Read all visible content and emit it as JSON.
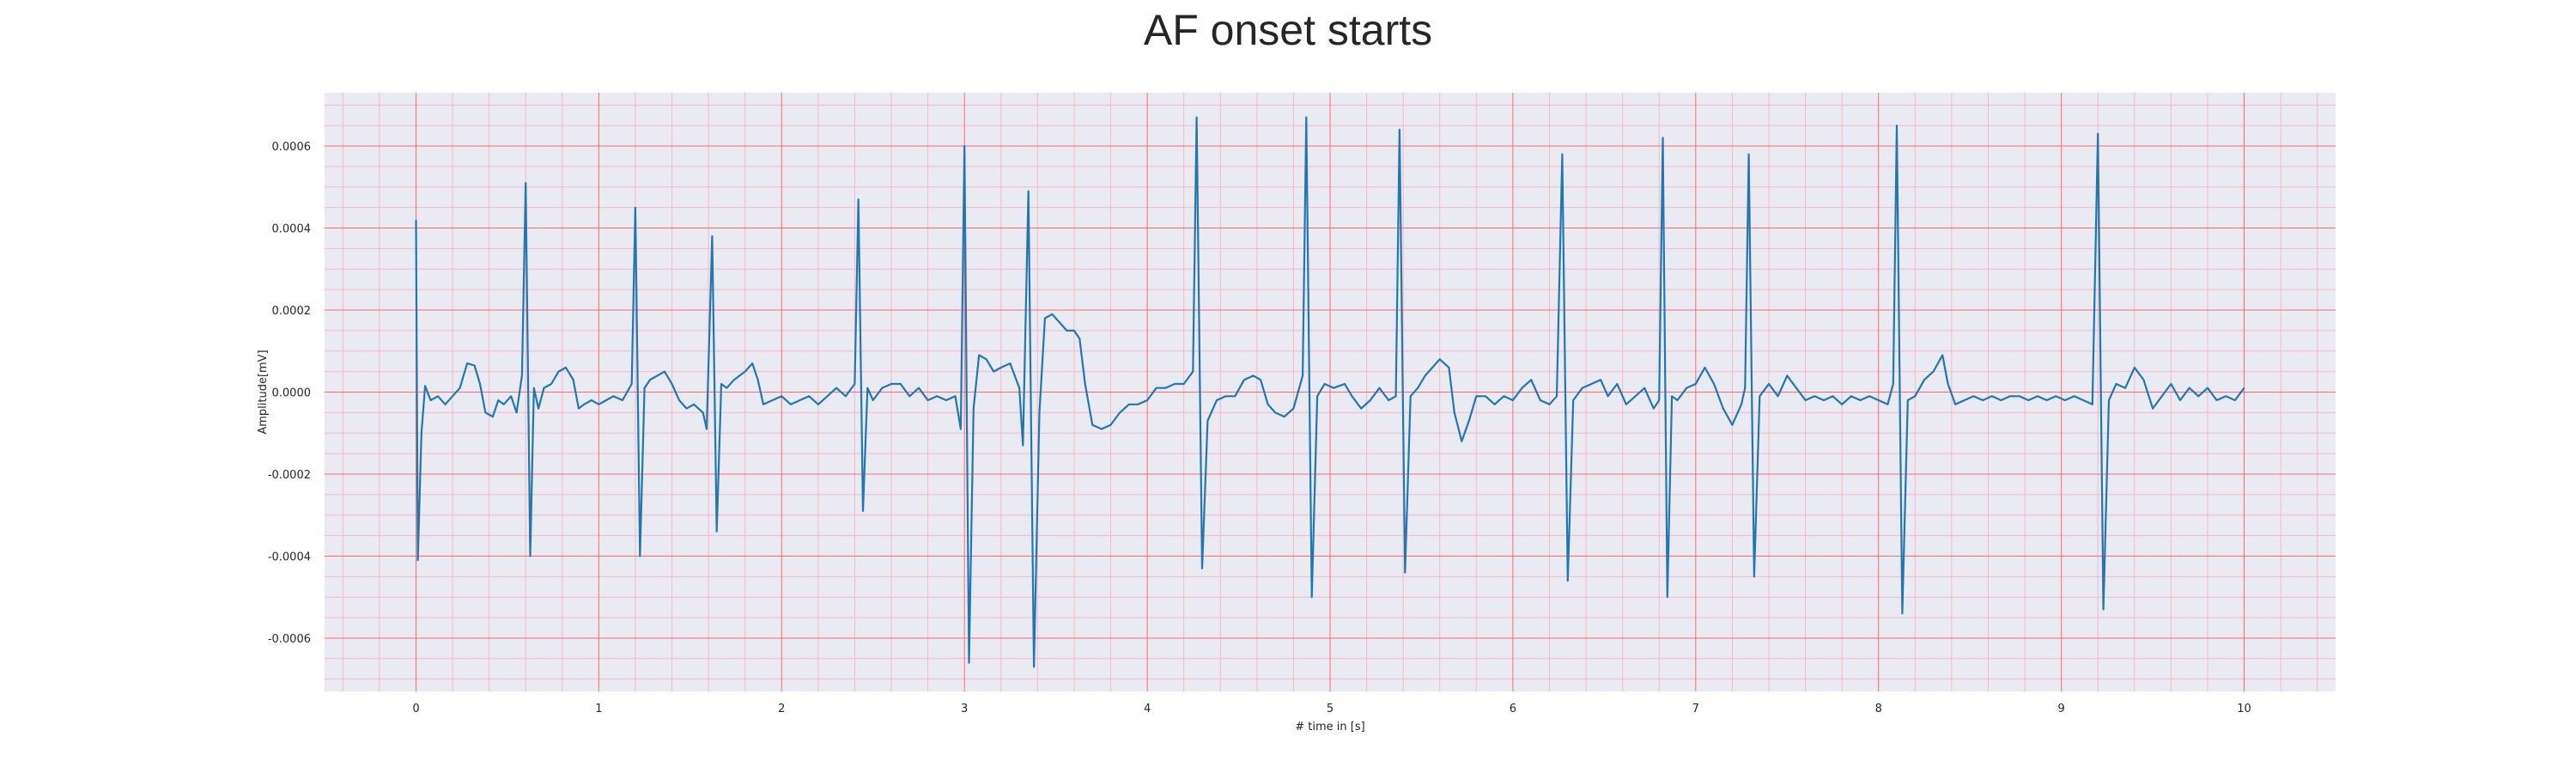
{
  "chart_data": {
    "type": "line",
    "title": "AF onset starts",
    "xlabel": "# time in [s]",
    "ylabel": "Amplitude[mV]",
    "xlim": [
      -0.5,
      10.5
    ],
    "ylim": [
      -0.00073,
      0.00073
    ],
    "xticks": [
      "0",
      "1",
      "2",
      "3",
      "4",
      "5",
      "6",
      "7",
      "8",
      "9",
      "10"
    ],
    "yticks": [
      "-0.0006",
      "-0.0004",
      "-0.0002",
      "0.0000",
      "0.0002",
      "0.0004",
      "0.0006"
    ],
    "grid": true,
    "colors": {
      "plot_bg": "#eaeaf2",
      "major_grid": "#ff6b6b",
      "minor_grid": "#f6b8c4",
      "line": "#1f77b4"
    },
    "series": [
      {
        "values": [
          [
            0.0,
            0.00042
          ],
          [
            0.01,
            -0.00041
          ],
          [
            0.03,
            -0.0001
          ],
          [
            0.05,
            1.5e-05
          ],
          [
            0.08,
            -2e-05
          ],
          [
            0.12,
            -1e-05
          ],
          [
            0.16,
            -3e-05
          ],
          [
            0.2,
            -1e-05
          ],
          [
            0.24,
            1e-05
          ],
          [
            0.26,
            4e-05
          ],
          [
            0.28,
            7e-05
          ],
          [
            0.32,
            6.5e-05
          ],
          [
            0.35,
            2e-05
          ],
          [
            0.38,
            -5e-05
          ],
          [
            0.42,
            -6e-05
          ],
          [
            0.45,
            -2e-05
          ],
          [
            0.48,
            -3e-05
          ],
          [
            0.52,
            -1e-05
          ],
          [
            0.55,
            -5e-05
          ],
          [
            0.58,
            4e-05
          ],
          [
            0.6,
            0.00051
          ],
          [
            0.625,
            -0.0004
          ],
          [
            0.645,
            1e-05
          ],
          [
            0.67,
            -4e-05
          ],
          [
            0.7,
            1e-05
          ],
          [
            0.74,
            2e-05
          ],
          [
            0.78,
            5e-05
          ],
          [
            0.82,
            6e-05
          ],
          [
            0.86,
            3e-05
          ],
          [
            0.89,
            -4e-05
          ],
          [
            0.92,
            -3e-05
          ],
          [
            0.96,
            -2e-05
          ],
          [
            1.0,
            -3e-05
          ],
          [
            1.04,
            -2e-05
          ],
          [
            1.08,
            -1e-05
          ],
          [
            1.13,
            -2e-05
          ],
          [
            1.18,
            2e-05
          ],
          [
            1.2,
            0.00045
          ],
          [
            1.225,
            -0.0004
          ],
          [
            1.25,
            1e-05
          ],
          [
            1.28,
            3e-05
          ],
          [
            1.32,
            4e-05
          ],
          [
            1.36,
            5e-05
          ],
          [
            1.4,
            2e-05
          ],
          [
            1.44,
            -2e-05
          ],
          [
            1.48,
            -4e-05
          ],
          [
            1.52,
            -3e-05
          ],
          [
            1.57,
            -5e-05
          ],
          [
            1.59,
            -9e-05
          ],
          [
            1.62,
            0.00038
          ],
          [
            1.645,
            -0.00034
          ],
          [
            1.67,
            2e-05
          ],
          [
            1.7,
            1e-05
          ],
          [
            1.74,
            3e-05
          ],
          [
            1.77,
            4e-05
          ],
          [
            1.8,
            5e-05
          ],
          [
            1.84,
            7e-05
          ],
          [
            1.87,
            3e-05
          ],
          [
            1.9,
            -3e-05
          ],
          [
            1.95,
            -2e-05
          ],
          [
            2.0,
            -1e-05
          ],
          [
            2.05,
            -3e-05
          ],
          [
            2.1,
            -2e-05
          ],
          [
            2.15,
            -1e-05
          ],
          [
            2.2,
            -3e-05
          ],
          [
            2.25,
            -1e-05
          ],
          [
            2.3,
            1e-05
          ],
          [
            2.35,
            -1e-05
          ],
          [
            2.4,
            2e-05
          ],
          [
            2.42,
            0.00047
          ],
          [
            2.445,
            -0.00029
          ],
          [
            2.47,
            1e-05
          ],
          [
            2.5,
            -2e-05
          ],
          [
            2.55,
            1e-05
          ],
          [
            2.6,
            2e-05
          ],
          [
            2.65,
            2e-05
          ],
          [
            2.7,
            -1e-05
          ],
          [
            2.75,
            1e-05
          ],
          [
            2.8,
            -2e-05
          ],
          [
            2.85,
            -1e-05
          ],
          [
            2.9,
            -2e-05
          ],
          [
            2.95,
            -1e-05
          ],
          [
            2.98,
            -9e-05
          ],
          [
            3.0,
            0.0006
          ],
          [
            3.025,
            -0.00066
          ],
          [
            3.05,
            -4e-05
          ],
          [
            3.08,
            9e-05
          ],
          [
            3.12,
            8e-05
          ],
          [
            3.16,
            5e-05
          ],
          [
            3.2,
            6e-05
          ],
          [
            3.25,
            7e-05
          ],
          [
            3.3,
            1e-05
          ],
          [
            3.32,
            -0.00013
          ],
          [
            3.35,
            0.00049
          ],
          [
            3.38,
            -0.00067
          ],
          [
            3.41,
            -5e-05
          ],
          [
            3.44,
            0.00018
          ],
          [
            3.48,
            0.00019
          ],
          [
            3.52,
            0.00017
          ],
          [
            3.56,
            0.00015
          ],
          [
            3.6,
            0.00015
          ],
          [
            3.63,
            0.00013
          ],
          [
            3.66,
            2e-05
          ],
          [
            3.7,
            -8e-05
          ],
          [
            3.75,
            -9e-05
          ],
          [
            3.8,
            -8e-05
          ],
          [
            3.85,
            -5e-05
          ],
          [
            3.9,
            -3e-05
          ],
          [
            3.95,
            -3e-05
          ],
          [
            4.0,
            -2e-05
          ],
          [
            4.05,
            1e-05
          ],
          [
            4.1,
            1e-05
          ],
          [
            4.15,
            2e-05
          ],
          [
            4.2,
            2e-05
          ],
          [
            4.25,
            5e-05
          ],
          [
            4.27,
            0.00067
          ],
          [
            4.3,
            -0.00043
          ],
          [
            4.33,
            -7e-05
          ],
          [
            4.38,
            -2e-05
          ],
          [
            4.43,
            -1e-05
          ],
          [
            4.48,
            -1e-05
          ],
          [
            4.53,
            3e-05
          ],
          [
            4.58,
            4e-05
          ],
          [
            4.62,
            3e-05
          ],
          [
            4.66,
            -3e-05
          ],
          [
            4.7,
            -5e-05
          ],
          [
            4.75,
            -6e-05
          ],
          [
            4.8,
            -4e-05
          ],
          [
            4.85,
            4e-05
          ],
          [
            4.87,
            0.00067
          ],
          [
            4.9,
            -0.0005
          ],
          [
            4.93,
            -1e-05
          ],
          [
            4.97,
            2e-05
          ],
          [
            5.02,
            1e-05
          ],
          [
            5.08,
            2e-05
          ],
          [
            5.12,
            -1e-05
          ],
          [
            5.17,
            -4e-05
          ],
          [
            5.22,
            -2e-05
          ],
          [
            5.27,
            1e-05
          ],
          [
            5.32,
            -2e-05
          ],
          [
            5.36,
            -1e-05
          ],
          [
            5.38,
            0.00064
          ],
          [
            5.41,
            -0.00044
          ],
          [
            5.44,
            -1e-05
          ],
          [
            5.48,
            1e-05
          ],
          [
            5.52,
            4e-05
          ],
          [
            5.56,
            6e-05
          ],
          [
            5.6,
            8e-05
          ],
          [
            5.65,
            6e-05
          ],
          [
            5.68,
            -5e-05
          ],
          [
            5.72,
            -0.00012
          ],
          [
            5.76,
            -7e-05
          ],
          [
            5.8,
            -1e-05
          ],
          [
            5.85,
            -1e-05
          ],
          [
            5.9,
            -3e-05
          ],
          [
            5.95,
            -1e-05
          ],
          [
            6.0,
            -2e-05
          ],
          [
            6.05,
            1e-05
          ],
          [
            6.1,
            3e-05
          ],
          [
            6.15,
            -2e-05
          ],
          [
            6.2,
            -3e-05
          ],
          [
            6.24,
            -1e-05
          ],
          [
            6.27,
            0.00058
          ],
          [
            6.3,
            -0.00046
          ],
          [
            6.33,
            -2e-05
          ],
          [
            6.38,
            1e-05
          ],
          [
            6.43,
            2e-05
          ],
          [
            6.48,
            3e-05
          ],
          [
            6.52,
            -1e-05
          ],
          [
            6.57,
            2e-05
          ],
          [
            6.62,
            -3e-05
          ],
          [
            6.67,
            -1e-05
          ],
          [
            6.72,
            1e-05
          ],
          [
            6.77,
            -4e-05
          ],
          [
            6.8,
            -2e-05
          ],
          [
            6.82,
            0.00062
          ],
          [
            6.845,
            -0.0005
          ],
          [
            6.87,
            -1e-05
          ],
          [
            6.9,
            -2e-05
          ],
          [
            6.95,
            1e-05
          ],
          [
            7.0,
            2e-05
          ],
          [
            7.05,
            6e-05
          ],
          [
            7.1,
            2e-05
          ],
          [
            7.15,
            -4e-05
          ],
          [
            7.2,
            -8e-05
          ],
          [
            7.25,
            -3e-05
          ],
          [
            7.27,
            1e-05
          ],
          [
            7.29,
            0.00058
          ],
          [
            7.32,
            -0.00045
          ],
          [
            7.35,
            -1e-05
          ],
          [
            7.4,
            2e-05
          ],
          [
            7.45,
            -1e-05
          ],
          [
            7.5,
            4e-05
          ],
          [
            7.55,
            1e-05
          ],
          [
            7.6,
            -2e-05
          ],
          [
            7.65,
            -1e-05
          ],
          [
            7.7,
            -2e-05
          ],
          [
            7.75,
            -1e-05
          ],
          [
            7.8,
            -3e-05
          ],
          [
            7.85,
            -1e-05
          ],
          [
            7.9,
            -2e-05
          ],
          [
            7.95,
            -1e-05
          ],
          [
            8.0,
            -2e-05
          ],
          [
            8.05,
            -3e-05
          ],
          [
            8.08,
            2e-05
          ],
          [
            8.1,
            0.00065
          ],
          [
            8.13,
            -0.00054
          ],
          [
            8.16,
            -2e-05
          ],
          [
            8.2,
            -1e-05
          ],
          [
            8.25,
            3e-05
          ],
          [
            8.3,
            5e-05
          ],
          [
            8.35,
            9e-05
          ],
          [
            8.38,
            2e-05
          ],
          [
            8.42,
            -3e-05
          ],
          [
            8.47,
            -2e-05
          ],
          [
            8.52,
            -1e-05
          ],
          [
            8.57,
            -2e-05
          ],
          [
            8.62,
            -1e-05
          ],
          [
            8.67,
            -2e-05
          ],
          [
            8.72,
            -1e-05
          ],
          [
            8.77,
            -1e-05
          ],
          [
            8.82,
            -2e-05
          ],
          [
            8.87,
            -1e-05
          ],
          [
            8.92,
            -2e-05
          ],
          [
            8.97,
            -1e-05
          ],
          [
            9.02,
            -2e-05
          ],
          [
            9.07,
            -1e-05
          ],
          [
            9.12,
            -2e-05
          ],
          [
            9.17,
            -3e-05
          ],
          [
            9.2,
            0.00063
          ],
          [
            9.23,
            -0.00053
          ],
          [
            9.26,
            -2e-05
          ],
          [
            9.3,
            2e-05
          ],
          [
            9.35,
            1e-05
          ],
          [
            9.4,
            6e-05
          ],
          [
            9.45,
            3e-05
          ],
          [
            9.5,
            -4e-05
          ],
          [
            9.55,
            -1e-05
          ],
          [
            9.6,
            2e-05
          ],
          [
            9.65,
            -2e-05
          ],
          [
            9.7,
            1e-05
          ],
          [
            9.75,
            -1e-05
          ],
          [
            9.8,
            1e-05
          ],
          [
            9.85,
            -2e-05
          ],
          [
            9.9,
            -1e-05
          ],
          [
            9.95,
            -2e-05
          ],
          [
            10.0,
            1e-05
          ]
        ]
      }
    ]
  }
}
